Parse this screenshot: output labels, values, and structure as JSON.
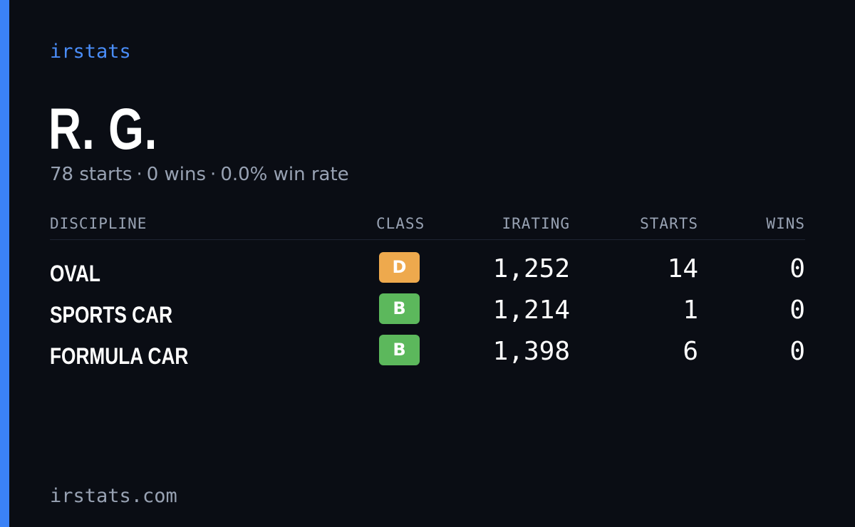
{
  "brand": "irstats",
  "driver": {
    "name": "R. G.",
    "starts_text": "78 starts",
    "wins_text": "0 wins",
    "win_rate_text": "0.0% win rate",
    "separator": "·"
  },
  "table": {
    "headers": {
      "discipline": "DISCIPLINE",
      "class": "CLASS",
      "irating": "IRATING",
      "starts": "STARTS",
      "wins": "WINS"
    },
    "rows": [
      {
        "discipline": "OVAL",
        "class": "D",
        "class_color": "#eea94d",
        "irating": "1,252",
        "starts": "14",
        "wins": "0"
      },
      {
        "discipline": "SPORTS CAR",
        "class": "B",
        "class_color": "#5cb85c",
        "irating": "1,214",
        "starts": "1",
        "wins": "0"
      },
      {
        "discipline": "FORMULA CAR",
        "class": "B",
        "class_color": "#5cb85c",
        "irating": "1,398",
        "starts": "6",
        "wins": "0"
      }
    ]
  },
  "footer": "irstats.com",
  "colors": {
    "accent": "#3b82f6",
    "background": "#0a0d14",
    "muted": "#98a2b3"
  }
}
